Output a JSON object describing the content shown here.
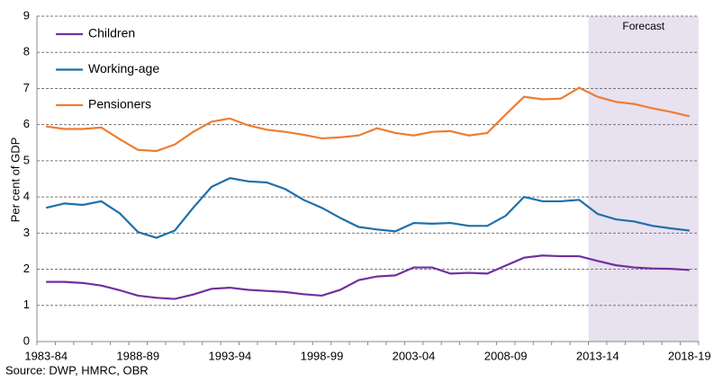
{
  "chart_data": {
    "type": "line",
    "y_label": "Per cent of GDP",
    "source": "Source: DWP, HMRC, OBR",
    "categories": [
      "1983-84",
      null,
      null,
      null,
      null,
      "1988-89",
      null,
      null,
      null,
      null,
      "1993-94",
      null,
      null,
      null,
      null,
      "1998-99",
      null,
      null,
      null,
      null,
      "2003-04",
      null,
      null,
      null,
      null,
      "2008-09",
      null,
      null,
      null,
      null,
      "2013-14",
      null,
      null,
      null,
      null,
      "2018-19"
    ],
    "series": [
      {
        "name": "Children",
        "color": "#7030a0",
        "values": [
          1.65,
          1.65,
          1.62,
          1.55,
          1.42,
          1.27,
          1.21,
          1.18,
          1.3,
          1.46,
          1.49,
          1.43,
          1.4,
          1.37,
          1.31,
          1.27,
          1.43,
          1.7,
          1.8,
          1.83,
          2.05,
          2.05,
          1.88,
          1.9,
          1.88,
          2.1,
          2.32,
          2.38,
          2.36,
          2.36,
          2.23,
          2.11,
          2.05,
          2.02,
          2.01,
          1.98
        ]
      },
      {
        "name": "Working-age",
        "color": "#1f6fa8",
        "values": [
          3.7,
          3.82,
          3.78,
          3.88,
          3.55,
          3.03,
          2.87,
          3.07,
          3.7,
          4.28,
          4.52,
          4.43,
          4.4,
          4.22,
          3.92,
          3.7,
          3.42,
          3.17,
          3.1,
          3.05,
          3.28,
          3.26,
          3.28,
          3.2,
          3.2,
          3.48,
          4.0,
          3.88,
          3.88,
          3.92,
          3.53,
          3.38,
          3.32,
          3.2,
          3.13,
          3.07
        ]
      },
      {
        "name": "Pensioners",
        "color": "#ed7d31",
        "values": [
          5.95,
          5.88,
          5.88,
          5.92,
          5.6,
          5.3,
          5.27,
          5.45,
          5.8,
          6.08,
          6.17,
          5.98,
          5.86,
          5.8,
          5.72,
          5.62,
          5.65,
          5.7,
          5.9,
          5.77,
          5.7,
          5.8,
          5.82,
          5.7,
          5.77,
          6.28,
          6.77,
          6.7,
          6.72,
          7.02,
          6.77,
          6.63,
          6.57,
          6.45,
          6.35,
          6.23
        ]
      }
    ],
    "ylim": [
      0,
      9
    ],
    "yticks": [
      0,
      1,
      2,
      3,
      4,
      5,
      6,
      7,
      8,
      9
    ],
    "grid": true,
    "forecast": {
      "label": "Forecast",
      "from": "2013-14",
      "color": "#e8e1f0"
    }
  }
}
